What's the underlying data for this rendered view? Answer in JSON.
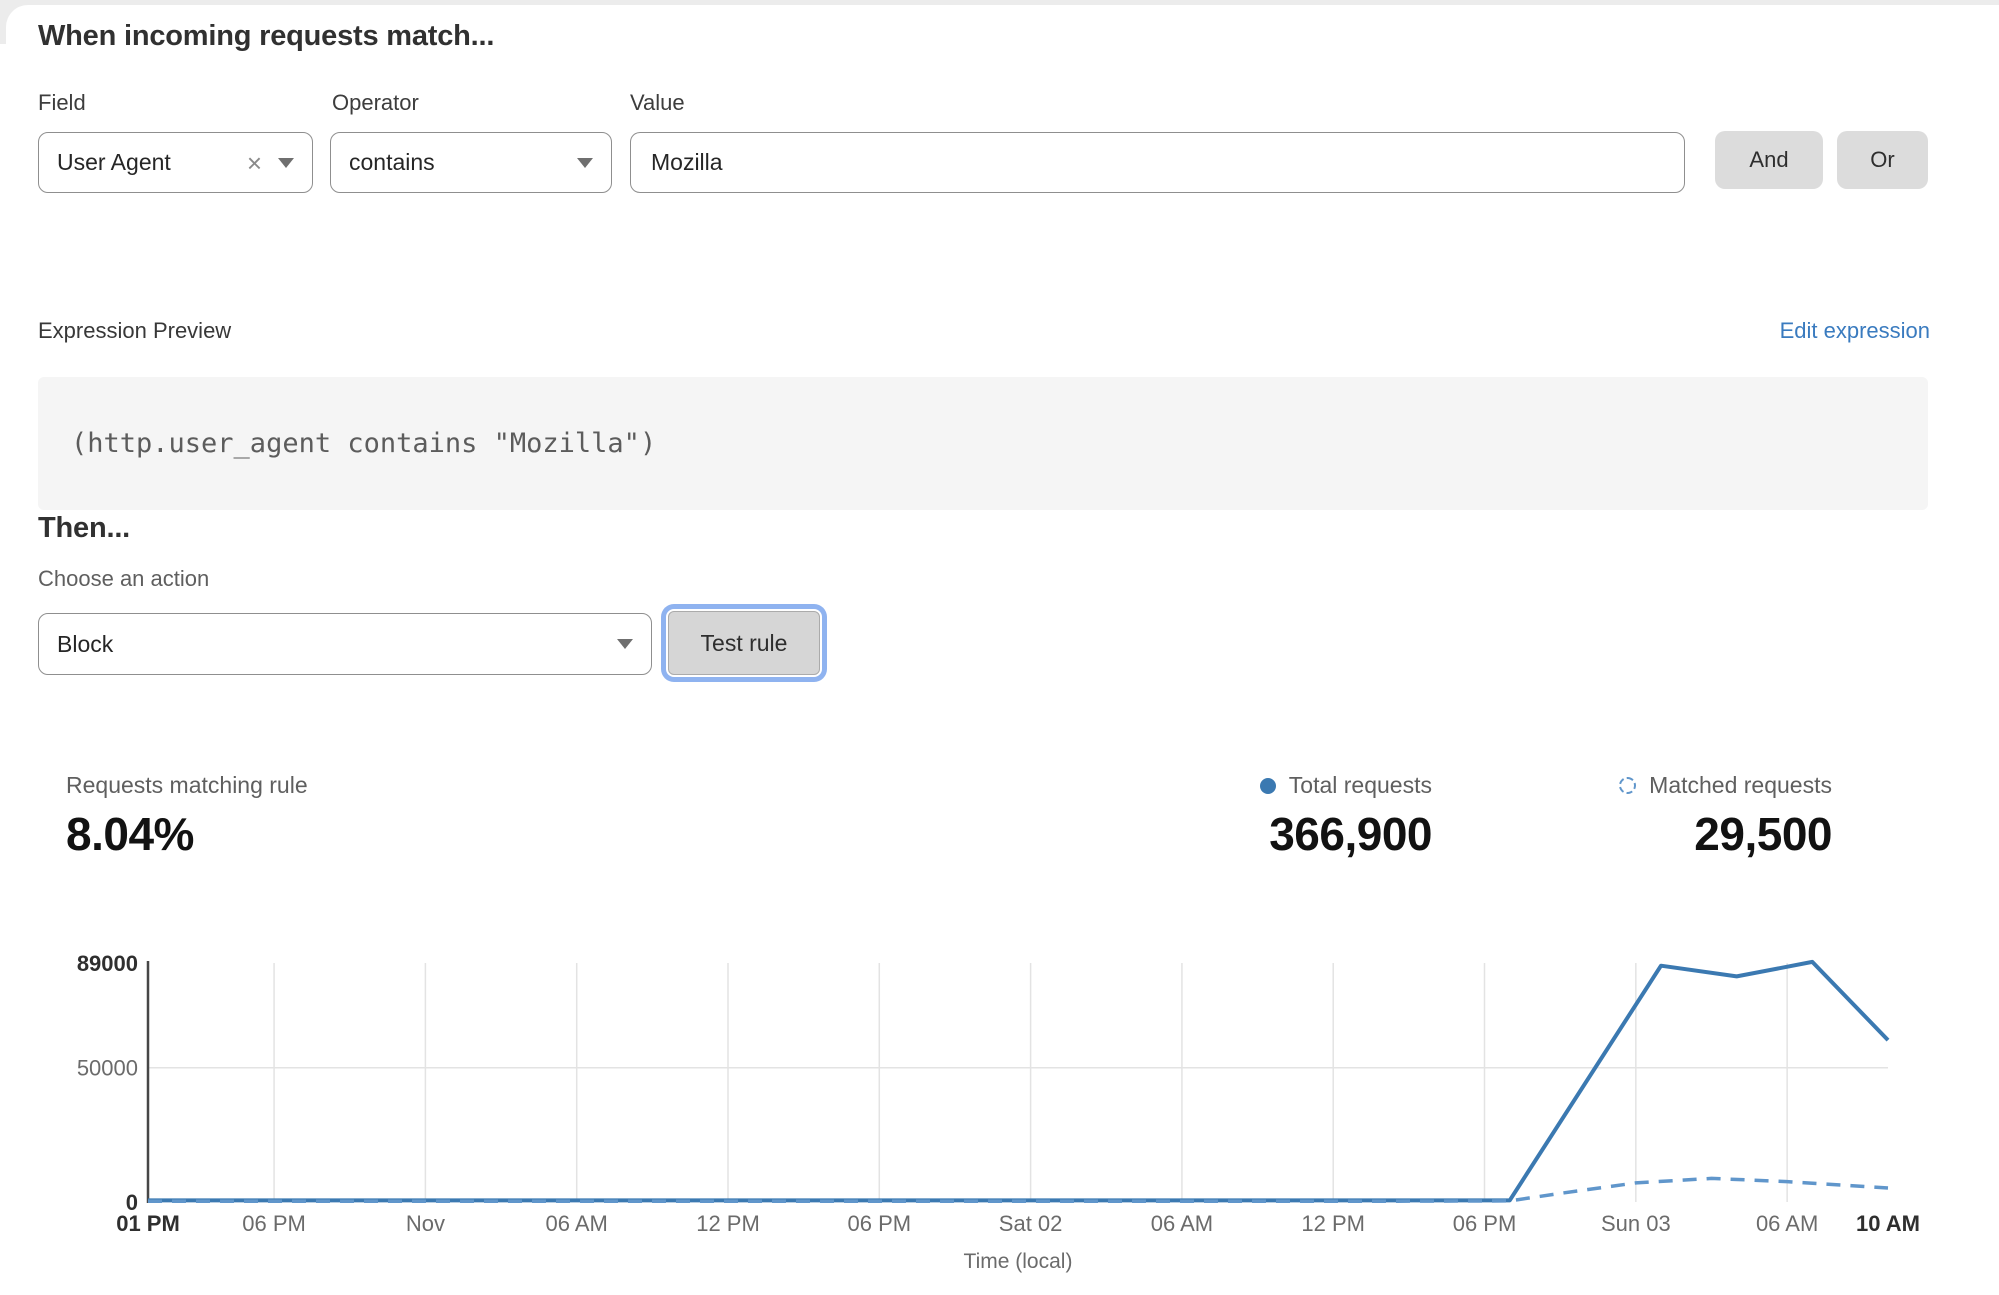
{
  "match_builder": {
    "heading": "When incoming requests match...",
    "field": {
      "label": "Field",
      "value": "User Agent"
    },
    "operator": {
      "label": "Operator",
      "value": "contains"
    },
    "value": {
      "label": "Value",
      "value": "Mozilla"
    },
    "and_label": "And",
    "or_label": "Or"
  },
  "expression": {
    "label": "Expression Preview",
    "edit_link": "Edit expression",
    "code": "(http.user_agent contains \"Mozilla\")"
  },
  "action": {
    "heading": "Then...",
    "choose_label": "Choose an action",
    "selected": "Block",
    "test_button": "Test rule"
  },
  "stats": {
    "matching": {
      "label": "Requests matching rule",
      "value": "8.04%"
    },
    "total": {
      "label": "Total requests",
      "value": "366,900"
    },
    "matched": {
      "label": "Matched requests",
      "value": "29,500"
    }
  },
  "colors": {
    "total_line": "#3b79b1",
    "matched_line": "#6096cb",
    "grid": "#e3e3e3",
    "axis": "#474747",
    "tick": "#6b6b6b",
    "tick_bold": "#2f2f2f",
    "link": "#3a7bbf"
  },
  "chart_data": {
    "type": "line",
    "xlabel": "Time (local)",
    "ylabel": "",
    "x_unit": "hours from start of window",
    "x_range": [
      0,
      69
    ],
    "ylim": [
      0,
      89000
    ],
    "grid": "vertical line at each x tick, horizontal line at 50000",
    "legend_position": "top-right",
    "legend": [
      "Total requests",
      "Matched requests"
    ],
    "yticks": [
      {
        "value": 0,
        "label": "0",
        "bold": true
      },
      {
        "value": 50000,
        "label": "50000",
        "bold": false
      },
      {
        "value": 89000,
        "label": "89000",
        "bold": true
      }
    ],
    "xticks": [
      {
        "h": 0,
        "label": "01 PM",
        "bold": true
      },
      {
        "h": 5,
        "label": "06 PM",
        "bold": false
      },
      {
        "h": 11,
        "label": "Nov",
        "bold": false
      },
      {
        "h": 17,
        "label": "06 AM",
        "bold": false
      },
      {
        "h": 23,
        "label": "12 PM",
        "bold": false
      },
      {
        "h": 29,
        "label": "06 PM",
        "bold": false
      },
      {
        "h": 35,
        "label": "Sat 02",
        "bold": false
      },
      {
        "h": 41,
        "label": "06 AM",
        "bold": false
      },
      {
        "h": 47,
        "label": "12 PM",
        "bold": false
      },
      {
        "h": 53,
        "label": "06 PM",
        "bold": false
      },
      {
        "h": 59,
        "label": "Sun 03",
        "bold": false
      },
      {
        "h": 65,
        "label": "06 AM",
        "bold": false
      },
      {
        "h": 69,
        "label": "10 AM",
        "bold": true
      }
    ],
    "series": [
      {
        "name": "Total requests",
        "style": "solid",
        "color": "#3b79b1",
        "points": [
          [
            0,
            600
          ],
          [
            8,
            600
          ],
          [
            16,
            600
          ],
          [
            24,
            600
          ],
          [
            32,
            600
          ],
          [
            40,
            600
          ],
          [
            48,
            600
          ],
          [
            54,
            600
          ],
          [
            60,
            88000
          ],
          [
            63,
            84000
          ],
          [
            66,
            89400
          ],
          [
            69,
            60300
          ]
        ]
      },
      {
        "name": "Matched requests",
        "style": "dashed",
        "color": "#6096cb",
        "points": [
          [
            0,
            250
          ],
          [
            8,
            250
          ],
          [
            16,
            250
          ],
          [
            24,
            250
          ],
          [
            32,
            250
          ],
          [
            40,
            250
          ],
          [
            48,
            250
          ],
          [
            54,
            400
          ],
          [
            56,
            3200
          ],
          [
            59,
            7100
          ],
          [
            62,
            8800
          ],
          [
            65,
            7600
          ],
          [
            69,
            5200
          ]
        ]
      }
    ]
  }
}
